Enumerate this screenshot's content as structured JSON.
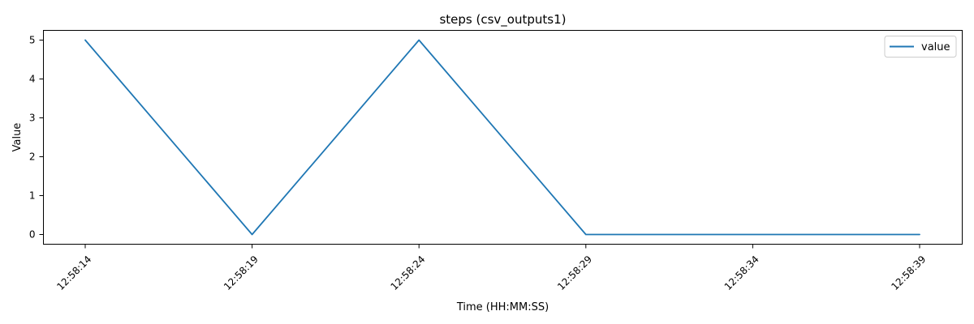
{
  "chart_data": {
    "type": "line",
    "title": "steps (csv_outputs1)",
    "xlabel": "Time (HH:MM:SS)",
    "ylabel": "Value",
    "x": [
      "12:58:14",
      "12:58:19",
      "12:58:24",
      "12:58:29",
      "12:58:34",
      "12:58:39"
    ],
    "series": [
      {
        "name": "value",
        "color": "#1f77b4",
        "values": [
          5,
          0,
          5,
          0,
          0,
          0
        ]
      }
    ],
    "xticks": [
      "12:58:14",
      "12:58:19",
      "12:58:24",
      "12:58:29",
      "12:58:34",
      "12:58:39"
    ],
    "yticks": [
      "0",
      "1",
      "2",
      "3",
      "4",
      "5"
    ],
    "ylim": [
      -0.25,
      5.25
    ],
    "grid": false,
    "legend_position": "top-right"
  }
}
